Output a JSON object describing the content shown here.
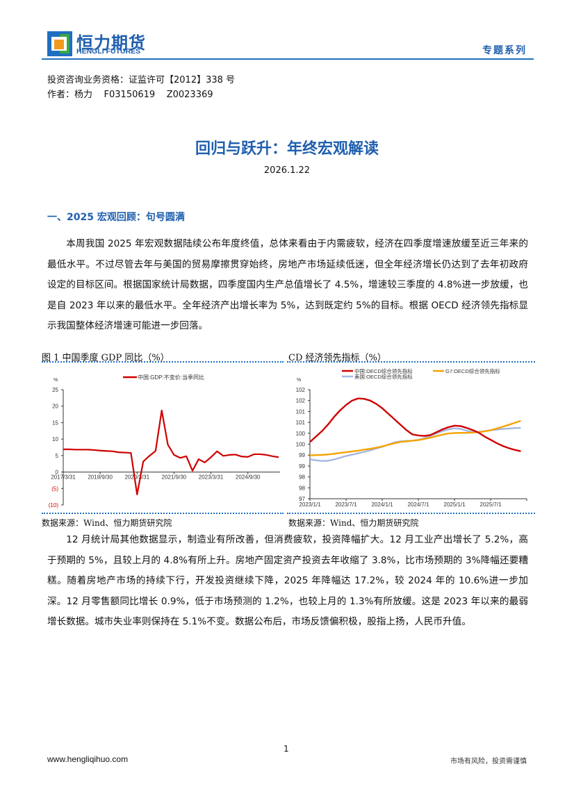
{
  "header": {
    "brand_cn": "恒力期货",
    "brand_en": "HENGLI FUTURES",
    "series": "专题系列",
    "brand_color": "#1f5fae"
  },
  "meta": {
    "qualification": "投资咨询业务资格：证监许可【2012】338 号",
    "author": "作者：杨力    F03150619    Z0023369"
  },
  "title": "回归与跃升：年终宏观解读",
  "date": "2026.1.22",
  "section1": {
    "heading": "一、2025 宏观回顾：句号圆满",
    "para1": "本周我国 2025 年宏观数据陆续公布年度终值，总体来看由于内需疲软，经济在四季度增速放缓至近三年来的最低水平。不过尽管去年与美国的贸易摩擦贯穿始终，房地产市场延续低迷，但全年经济增长仍达到了去年初政府设定的目标区间。根据国家统计局数据，四季度国内生产总值增长了 4.5%，增速较三季度的 4.8%进一步放缓，也是自 2023 年以来的最低水平。全年经济产出增长率为 5%，达到既定约 5%的目标。根据 OECD 经济领先指标显示我国整体经济增速可能进一步回落。",
    "para2": "12 月统计局其他数据显示，制造业有所改善，但消费疲软，投资降幅扩大。12 月工业产出增长了 5.2%，高于预期的 5%，且较上月的 4.8%有所上升。房地产固定资产投资去年收缩了 3.8%，比市场预期的 3%降幅还要糟糕。随着房地产市场的持续下行，开发投资继续下降，2025 年降幅达 17.2%，较 2024 年的 10.6%进一步加深。12 月零售额同比增长 0.9%，低于市场预测的 1.2%，也较上月的 1.3%有所放缓。这是 2023 年以来的最弱增长数据。城市失业率则保持在 5.1%不变。数据公布后，市场反馈偏积极，股指上扬，人民币升值。"
  },
  "figures": [
    {
      "title": "图 1  中国季度 GDP 同比（%）",
      "source": "数据来源：Wind、恒力期货研究院"
    },
    {
      "title": "CD 经济领先指标（%）",
      "source": "数据来源：Wind、恒力期货研究院"
    }
  ],
  "chart_data": [
    {
      "type": "line",
      "ylabel": "%",
      "ylim": [
        -10,
        25
      ],
      "yticks": [
        25,
        20,
        15,
        10,
        5,
        0,
        -5,
        -10
      ],
      "ytick_labels": [
        "25",
        "20",
        "15",
        "10",
        "5",
        "0",
        "(5)",
        "(10)"
      ],
      "negative_tick_color": "#d00000",
      "xtick_labels": [
        "2017/3/31",
        "2018/9/30",
        "2020/3/31",
        "2021/9/30",
        "2023/3/31",
        "2024/9/30"
      ],
      "x": [
        "2017Q1",
        "2017Q2",
        "2017Q3",
        "2017Q4",
        "2018Q1",
        "2018Q2",
        "2018Q3",
        "2018Q4",
        "2019Q1",
        "2019Q2",
        "2019Q3",
        "2019Q4",
        "2020Q1",
        "2020Q2",
        "2020Q3",
        "2020Q4",
        "2021Q1",
        "2021Q2",
        "2021Q3",
        "2021Q4",
        "2022Q1",
        "2022Q2",
        "2022Q3",
        "2022Q4",
        "2023Q1",
        "2023Q2",
        "2023Q3",
        "2023Q4",
        "2024Q1",
        "2024Q2",
        "2024Q3",
        "2024Q4",
        "2025Q1",
        "2025Q2",
        "2025Q3",
        "2025Q4"
      ],
      "series": [
        {
          "name": "中国:GDP:不变价:当季同比",
          "color": "#d00000",
          "values": [
            6.9,
            6.9,
            6.8,
            6.8,
            6.8,
            6.7,
            6.5,
            6.4,
            6.3,
            6.0,
            5.9,
            5.8,
            -6.8,
            3.2,
            4.9,
            6.4,
            18.7,
            8.3,
            5.2,
            4.3,
            4.8,
            0.4,
            3.9,
            2.9,
            4.5,
            6.3,
            4.9,
            5.2,
            5.3,
            4.7,
            4.6,
            5.4,
            5.4,
            5.2,
            4.8,
            4.5
          ]
        }
      ],
      "legend": "top"
    },
    {
      "type": "line",
      "ylabel": "%",
      "ylim": [
        97,
        102
      ],
      "yticks": [
        97,
        97.5,
        98,
        98.5,
        99,
        99.5,
        100,
        100.5,
        101,
        101.5,
        102
      ],
      "ytick_labels": [
        "97",
        "98",
        "98",
        "99",
        "99",
        "100",
        "100",
        "101",
        "101",
        "102",
        "102"
      ],
      "xtick_labels": [
        "2023/1/1",
        "2023/7/1",
        "2024/1/1",
        "2024/7/1",
        "2025/1/1",
        "2025/7/1"
      ],
      "x_start": "2023/1",
      "x_end": "2025/12",
      "frequency": "monthly",
      "series": [
        {
          "name": "中国:OECD综合领先指标",
          "color": "#d00000",
          "values": [
            99.6,
            99.85,
            100.1,
            100.4,
            100.75,
            101.05,
            101.3,
            101.5,
            101.6,
            101.58,
            101.5,
            101.35,
            101.15,
            100.9,
            100.65,
            100.4,
            100.15,
            99.95,
            99.9,
            99.88,
            99.92,
            100.05,
            100.18,
            100.28,
            100.35,
            100.33,
            100.25,
            100.15,
            100.03,
            99.85,
            99.7,
            99.55,
            99.42,
            99.32,
            99.24,
            99.18
          ]
        },
        {
          "name": "G7:OECD综合领先指标",
          "color": "#f5a300",
          "values": [
            98.99,
            99.0,
            99.01,
            99.03,
            99.06,
            99.1,
            99.13,
            99.17,
            99.2,
            99.25,
            99.29,
            99.34,
            99.4,
            99.47,
            99.54,
            99.6,
            99.63,
            99.66,
            99.69,
            99.74,
            99.8,
            99.87,
            99.94,
            99.99,
            100.01,
            100.02,
            100.02,
            100.03,
            100.05,
            100.09,
            100.14,
            100.22,
            100.3,
            100.39,
            100.48,
            100.57
          ]
        },
        {
          "name": "美国:OECD综合领先指标",
          "color": "#a4b6e2",
          "values": [
            98.81,
            98.76,
            98.73,
            98.74,
            98.8,
            98.88,
            98.96,
            99.02,
            99.08,
            99.15,
            99.22,
            99.3,
            99.38,
            99.48,
            99.58,
            99.63,
            99.65,
            99.66,
            99.7,
            99.78,
            99.88,
            99.99,
            100.1,
            100.18,
            100.23,
            100.2,
            100.12,
            100.06,
            100.06,
            100.1,
            100.14,
            100.17,
            100.2,
            100.22,
            100.24,
            100.25
          ]
        }
      ],
      "legend": "top"
    }
  ],
  "footer": {
    "website": "www.hengliqihuo.com",
    "page": "1",
    "disclaimer": "市场有风险，投资需谨慎"
  }
}
